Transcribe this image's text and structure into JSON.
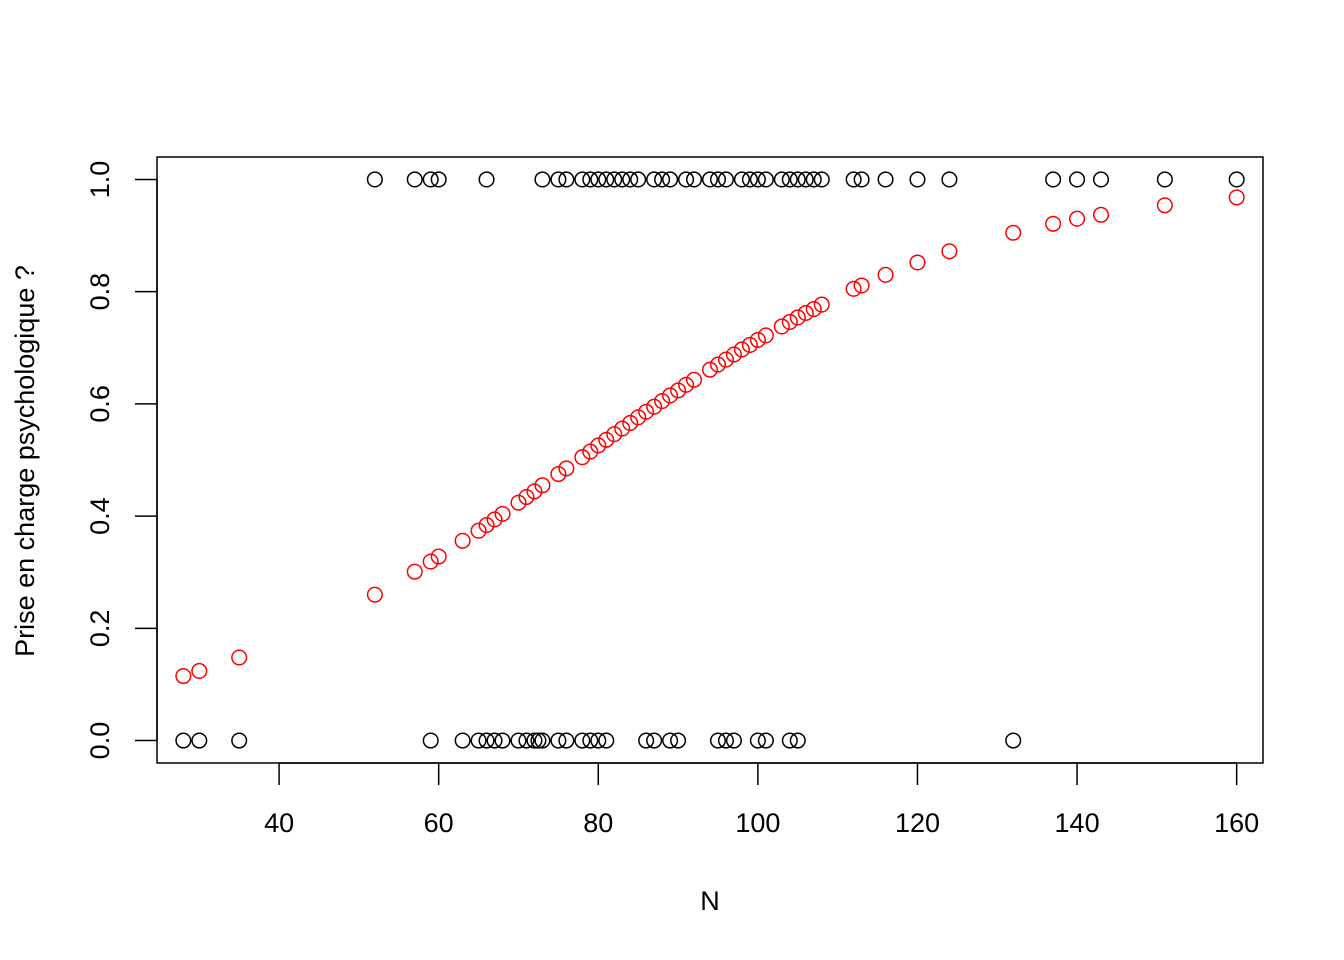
{
  "chart_data": {
    "type": "scatter",
    "title": "",
    "xlabel": "N",
    "ylabel": "Prise en charge psychologique ?",
    "xlim": [
      24.7,
      163.3
    ],
    "ylim": [
      -0.04,
      1.04
    ],
    "xticks": [
      40,
      60,
      80,
      100,
      120,
      140,
      160
    ],
    "yticks": [
      0.0,
      0.2,
      0.4,
      0.6,
      0.8,
      1.0
    ],
    "xtick_labels": [
      "40",
      "60",
      "80",
      "100",
      "120",
      "140",
      "160"
    ],
    "ytick_labels": [
      "0.0",
      "0.2",
      "0.4",
      "0.6",
      "0.8",
      "1.0"
    ],
    "grid": false,
    "legend": "none",
    "series": [
      {
        "color": "#000000",
        "marker": "open-circle",
        "points": [
          [
            28,
            0
          ],
          [
            30,
            0
          ],
          [
            35,
            0
          ],
          [
            59,
            0
          ],
          [
            63,
            0
          ],
          [
            65,
            0
          ],
          [
            66,
            0
          ],
          [
            67,
            0
          ],
          [
            68,
            0
          ],
          [
            70,
            0
          ],
          [
            71,
            0
          ],
          [
            72,
            0
          ],
          [
            72.5,
            0
          ],
          [
            73,
            0
          ],
          [
            75,
            0
          ],
          [
            76,
            0
          ],
          [
            78,
            0
          ],
          [
            79,
            0
          ],
          [
            80,
            0
          ],
          [
            81,
            0
          ],
          [
            86,
            0
          ],
          [
            87,
            0
          ],
          [
            89,
            0
          ],
          [
            90,
            0
          ],
          [
            95,
            0
          ],
          [
            96,
            0
          ],
          [
            97,
            0
          ],
          [
            100,
            0
          ],
          [
            101,
            0
          ],
          [
            104,
            0
          ],
          [
            105,
            0
          ],
          [
            132,
            0
          ],
          [
            52,
            1
          ],
          [
            57,
            1
          ],
          [
            59,
            1
          ],
          [
            60,
            1
          ],
          [
            66,
            1
          ],
          [
            73,
            1
          ],
          [
            75,
            1
          ],
          [
            76,
            1
          ],
          [
            78,
            1
          ],
          [
            79,
            1
          ],
          [
            80,
            1
          ],
          [
            81,
            1
          ],
          [
            82,
            1
          ],
          [
            83,
            1
          ],
          [
            84,
            1
          ],
          [
            85,
            1
          ],
          [
            87,
            1
          ],
          [
            88,
            1
          ],
          [
            89,
            1
          ],
          [
            91,
            1
          ],
          [
            92,
            1
          ],
          [
            94,
            1
          ],
          [
            95,
            1
          ],
          [
            96,
            1
          ],
          [
            98,
            1
          ],
          [
            99,
            1
          ],
          [
            100,
            1
          ],
          [
            101,
            1
          ],
          [
            103,
            1
          ],
          [
            104,
            1
          ],
          [
            105,
            1
          ],
          [
            106,
            1
          ],
          [
            107,
            1
          ],
          [
            108,
            1
          ],
          [
            112,
            1
          ],
          [
            113,
            1
          ],
          [
            116,
            1
          ],
          [
            120,
            1
          ],
          [
            124,
            1
          ],
          [
            137,
            1
          ],
          [
            140,
            1
          ],
          [
            143,
            1
          ],
          [
            151,
            1
          ],
          [
            160,
            1
          ]
        ]
      },
      {
        "color": "#ff0000",
        "marker": "open-circle",
        "points": [
          [
            28,
            0.115
          ],
          [
            30,
            0.124
          ],
          [
            35,
            0.148
          ],
          [
            52,
            0.26
          ],
          [
            57,
            0.301
          ],
          [
            59,
            0.319
          ],
          [
            60,
            0.328
          ],
          [
            63,
            0.356
          ],
          [
            65,
            0.374
          ],
          [
            66,
            0.384
          ],
          [
            67,
            0.394
          ],
          [
            68,
            0.404
          ],
          [
            70,
            0.424
          ],
          [
            71,
            0.434
          ],
          [
            72,
            0.444
          ],
          [
            73,
            0.455
          ],
          [
            75,
            0.475
          ],
          [
            76,
            0.485
          ],
          [
            78,
            0.505
          ],
          [
            79,
            0.515
          ],
          [
            80,
            0.526
          ],
          [
            81,
            0.536
          ],
          [
            82,
            0.546
          ],
          [
            83,
            0.556
          ],
          [
            84,
            0.566
          ],
          [
            85,
            0.576
          ],
          [
            86,
            0.586
          ],
          [
            87,
            0.595
          ],
          [
            88,
            0.605
          ],
          [
            89,
            0.615
          ],
          [
            90,
            0.624
          ],
          [
            91,
            0.634
          ],
          [
            92,
            0.643
          ],
          [
            94,
            0.661
          ],
          [
            95,
            0.67
          ],
          [
            96,
            0.679
          ],
          [
            97,
            0.688
          ],
          [
            98,
            0.697
          ],
          [
            99,
            0.705
          ],
          [
            100,
            0.714
          ],
          [
            101,
            0.722
          ],
          [
            103,
            0.738
          ],
          [
            104,
            0.746
          ],
          [
            105,
            0.754
          ],
          [
            106,
            0.762
          ],
          [
            107,
            0.769
          ],
          [
            108,
            0.777
          ],
          [
            112,
            0.805
          ],
          [
            113,
            0.811
          ],
          [
            116,
            0.83
          ],
          [
            120,
            0.852
          ],
          [
            124,
            0.872
          ],
          [
            132,
            0.905
          ],
          [
            137,
            0.921
          ],
          [
            140,
            0.93
          ],
          [
            143,
            0.937
          ],
          [
            151,
            0.954
          ],
          [
            160,
            0.968
          ]
        ]
      }
    ]
  }
}
